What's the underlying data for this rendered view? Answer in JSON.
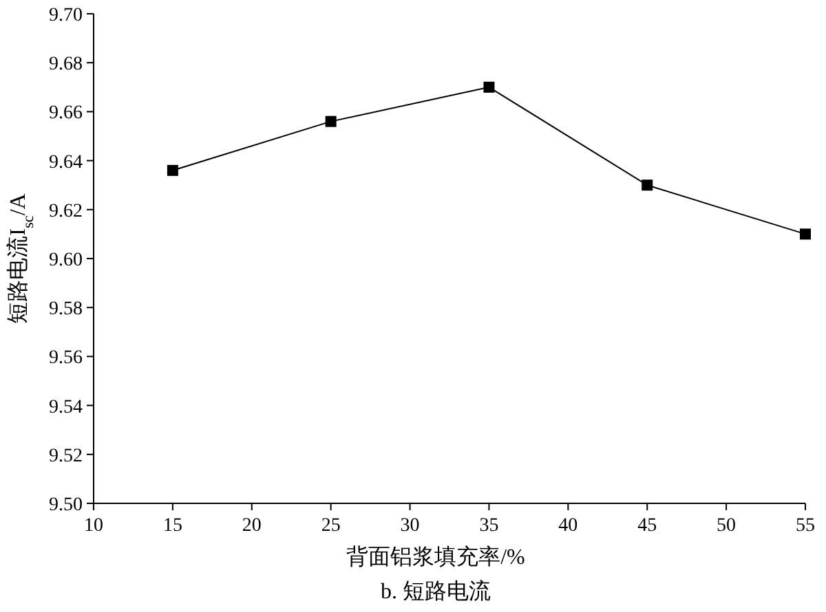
{
  "chart_data": {
    "type": "line",
    "xlabel": "背面铝浆填充率/%",
    "ylabel": "短路电流I$_{sc}$/A",
    "x": [
      15,
      25,
      35,
      45,
      55
    ],
    "series": [
      {
        "color": "#000000",
        "values": [
          9.636,
          9.656,
          9.67,
          9.63,
          9.61
        ]
      }
    ],
    "xlim": [
      10,
      55
    ],
    "xticks": [
      10,
      15,
      20,
      25,
      30,
      35,
      40,
      45,
      50,
      55
    ],
    "ylim": [
      9.5,
      9.7
    ],
    "yticks": [
      {
        "value": 9.5,
        "label": "9.50"
      },
      {
        "value": 9.52,
        "label": "9.52"
      },
      {
        "value": 9.54,
        "label": "9.54"
      },
      {
        "value": 9.56,
        "label": "9.56"
      },
      {
        "value": 9.58,
        "label": "9.58"
      },
      {
        "value": 9.6,
        "label": "9.60"
      },
      {
        "value": 9.62,
        "label": "9.62"
      },
      {
        "value": 9.64,
        "label": "9.64"
      },
      {
        "value": 9.66,
        "label": "9.66"
      },
      {
        "value": 9.68,
        "label": "9.68"
      },
      {
        "value": 9.7,
        "label": "9.70"
      }
    ],
    "marker": "square",
    "line_style": "solid",
    "annotations": [
      "b. 短路电流"
    ]
  }
}
